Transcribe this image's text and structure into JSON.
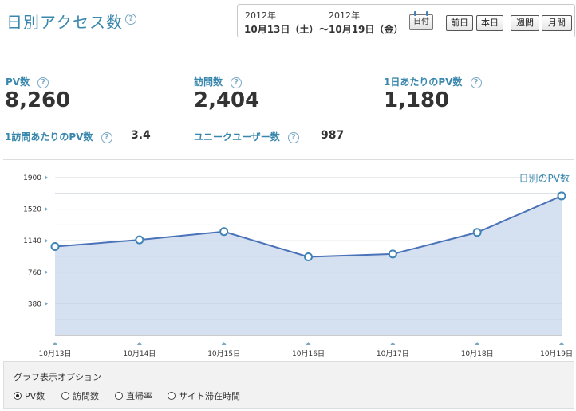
{
  "header": {
    "title": "日別アクセス数",
    "help": "?",
    "date_range": {
      "start_year": "2012年",
      "start_date": "10月13日（土）",
      "end_year": "2012年",
      "end_date": "～10月19日（金）"
    },
    "calendar_label": "日付",
    "buttons": {
      "prev_day": "前日",
      "today": "本日",
      "week": "週間",
      "month": "月間"
    }
  },
  "stats": {
    "pv": {
      "label": "PV数",
      "value": "8,260"
    },
    "visits": {
      "label": "訪問数",
      "value": "2,404"
    },
    "pv_per_day": {
      "label": "1日あたりのPV数",
      "value": "1,180"
    },
    "pv_per_visit": {
      "label": "1訪問あたりのPV数",
      "value": "3.4"
    },
    "unique_users": {
      "label": "ユニークユーザー数",
      "value": "987"
    }
  },
  "chart_data": {
    "type": "area",
    "title": "日別のPV数",
    "categories": [
      "10月13日",
      "10月14日",
      "10月15日",
      "10月16日",
      "10月17日",
      "10月18日",
      "10月19日"
    ],
    "series": [
      {
        "values": [
          1070,
          1150,
          1250,
          945,
          980,
          1240,
          1680
        ],
        "color": "#4a72b8",
        "fill": "#d3dff0"
      }
    ],
    "yticks": [
      380,
      760,
      1140,
      1520,
      1900
    ],
    "ylim": [
      0,
      1900
    ],
    "grid": true
  },
  "options": {
    "title": "グラフ表示オプション",
    "items": [
      {
        "label": "PV数",
        "selected": true
      },
      {
        "label": "訪問数",
        "selected": false
      },
      {
        "label": "直帰率",
        "selected": false
      },
      {
        "label": "サイト滞在時間",
        "selected": false
      }
    ]
  }
}
